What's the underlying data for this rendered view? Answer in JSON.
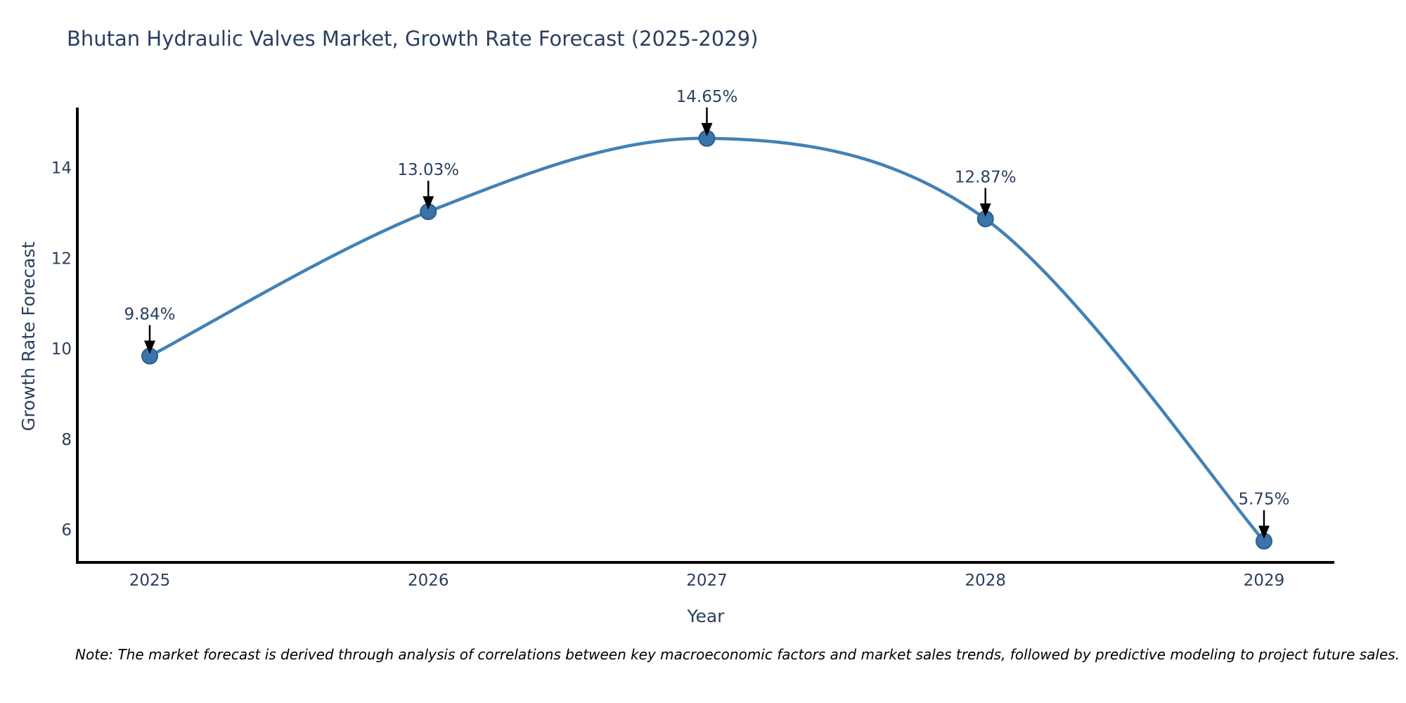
{
  "title": "Bhutan Hydraulic Valves Market, Growth Rate Forecast (2025-2029)",
  "note": "Note: The market forecast is derived through analysis of correlations between key macroeconomic factors and market sales trends, followed by predictive modeling to project future sales.",
  "chart_data": {
    "type": "line",
    "title": "Bhutan Hydraulic Valves Market, Growth Rate Forecast (2025-2029)",
    "xlabel": "Year",
    "ylabel": "Growth Rate Forecast",
    "categories": [
      "2025",
      "2026",
      "2027",
      "2028",
      "2029"
    ],
    "values": [
      9.84,
      13.03,
      14.65,
      12.87,
      5.75
    ],
    "point_labels": [
      "9.84%",
      "13.03%",
      "14.65%",
      "12.87%",
      "5.75%"
    ],
    "yticks": [
      6,
      8,
      10,
      12,
      14
    ],
    "ytick_labels": [
      "6",
      "8",
      "10",
      "12",
      "14"
    ],
    "ylim": [
      5.28,
      15.3
    ],
    "grid": false,
    "legend_position": "none",
    "curve": "spline",
    "colors": {
      "line": "#4281b5",
      "marker_fill": "#3a74ab",
      "marker_edge": "#2d5f8f",
      "text": "#2a3f5f",
      "axis": "#000000",
      "arrow": "#000000"
    }
  }
}
